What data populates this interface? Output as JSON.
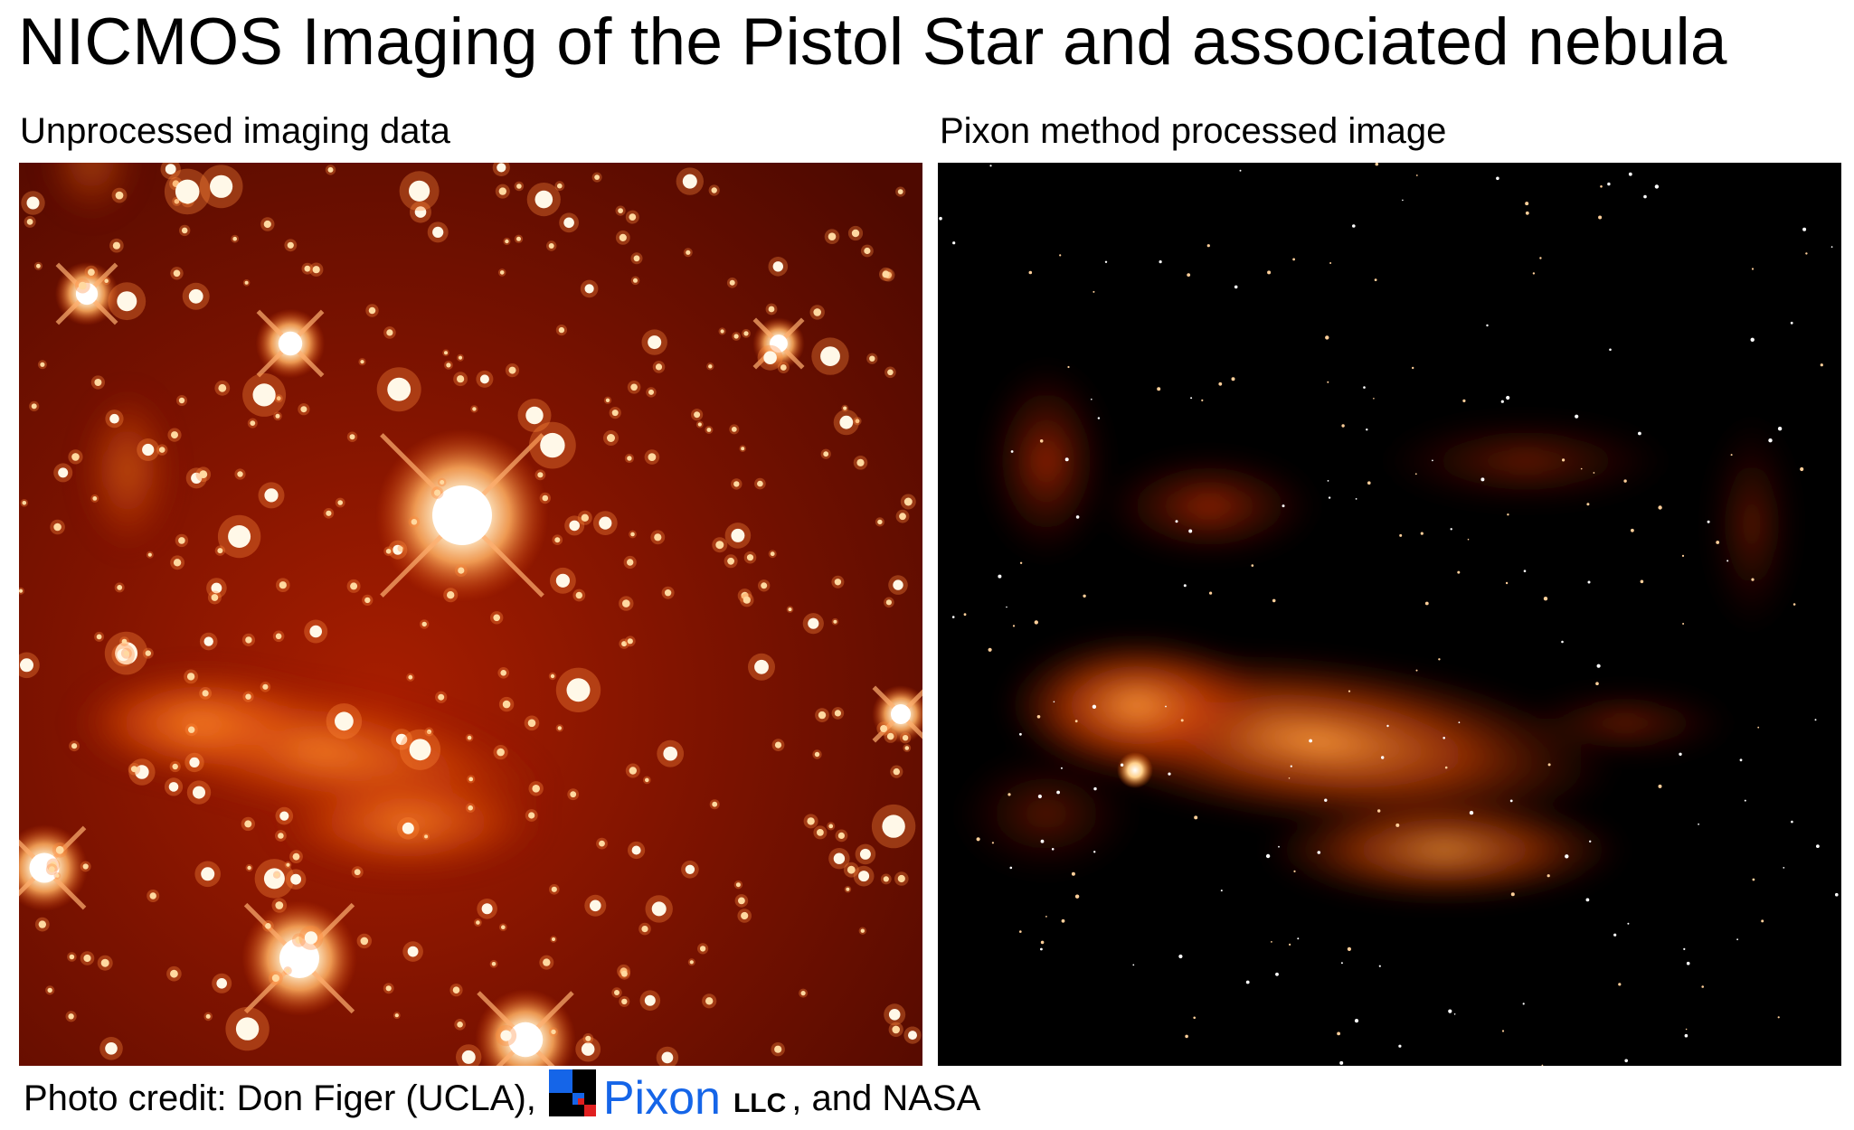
{
  "title": "NICMOS Imaging of the Pistol Star and associated nebula",
  "panels": {
    "left": {
      "caption": "Unprocessed imaging data",
      "image_subject": "starfield-with-nebula-raw"
    },
    "right": {
      "caption": "Pixon method processed image",
      "image_subject": "nebula-processed"
    }
  },
  "credit": {
    "prefix": "Photo credit:  Don Figer (UCLA),",
    "brand_name": "Pixon",
    "brand_suffix": "LLC",
    "tail": ", and NASA",
    "brand_color": "#1565e8"
  },
  "colors": {
    "background": "#ffffff",
    "text": "#000000",
    "image_dark": "#000000",
    "image_mid": "#8a1500",
    "image_bright": "#ff7a1a",
    "image_hot": "#fff6e0"
  }
}
